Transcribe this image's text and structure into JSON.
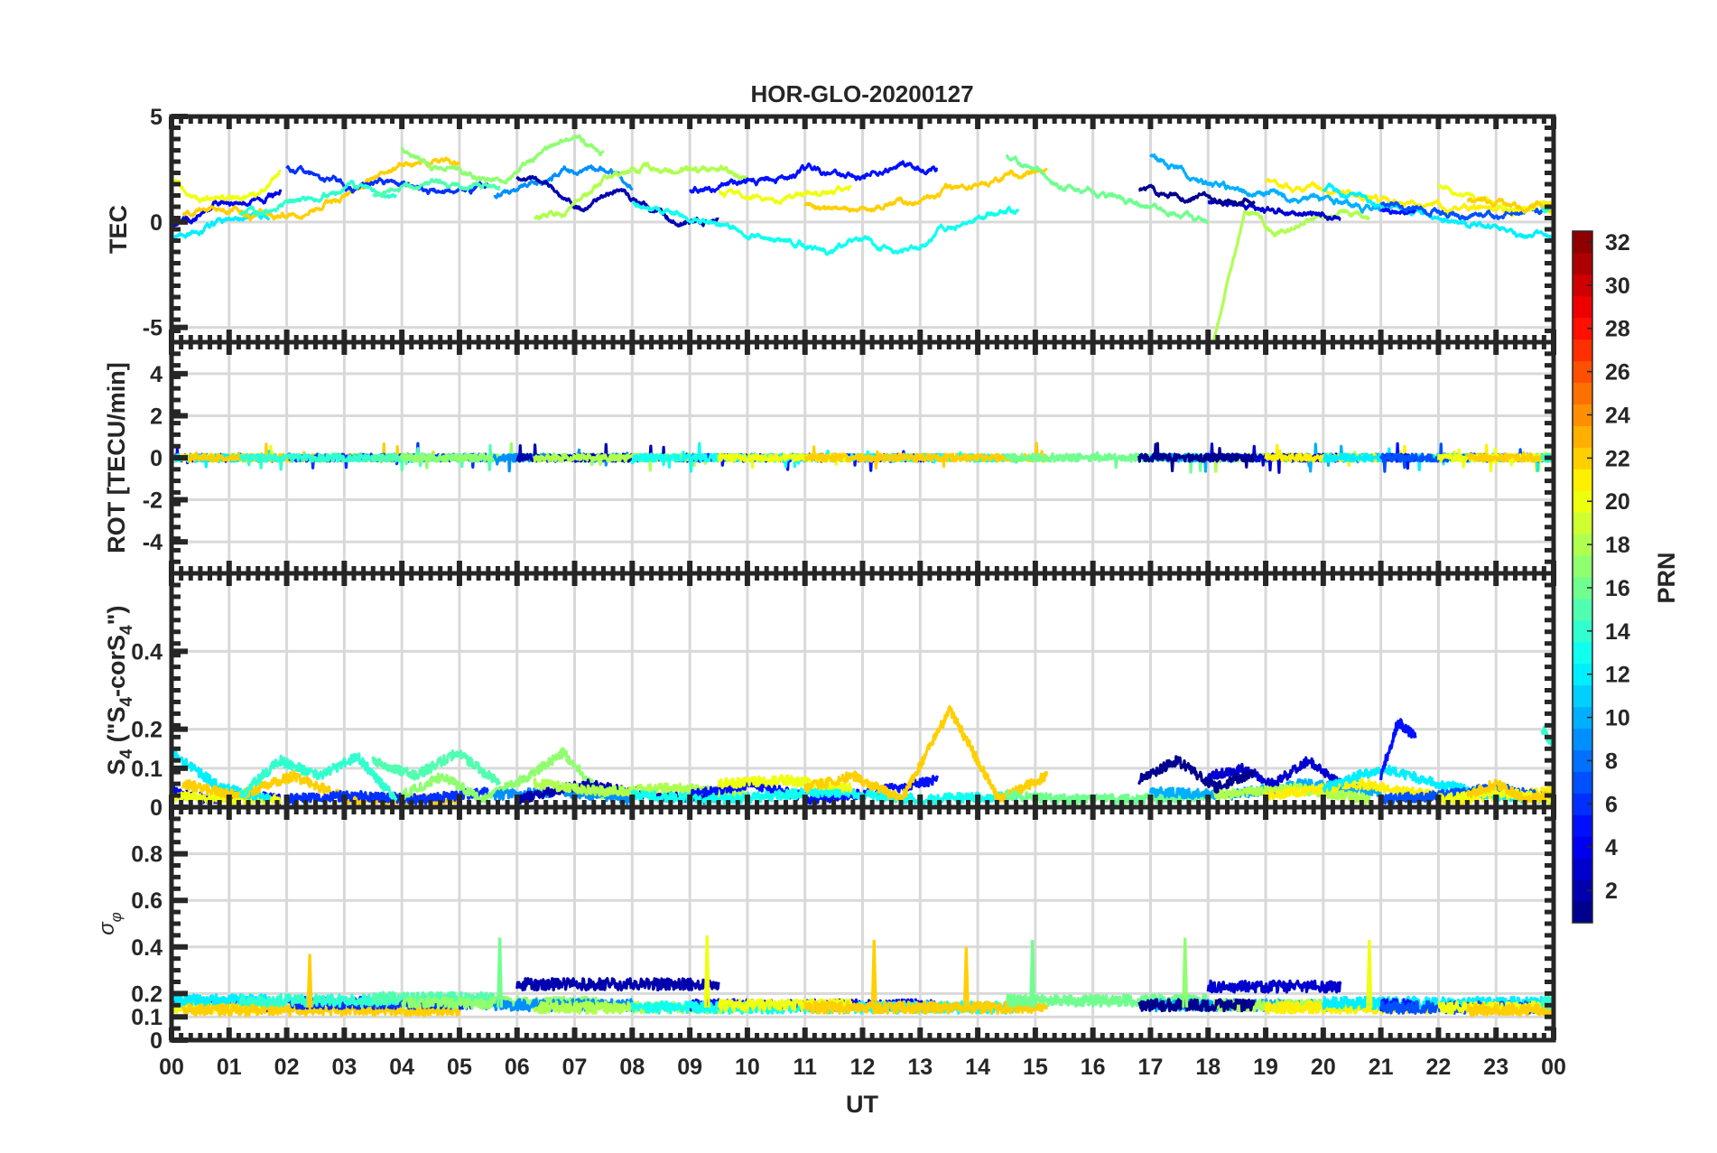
{
  "chart_data": {
    "type": "line",
    "title": "HOR-GLO-20200127",
    "xlabel": "UT",
    "xlim": [
      0,
      24
    ],
    "x_tick_labels": [
      "00",
      "01",
      "02",
      "03",
      "04",
      "05",
      "06",
      "07",
      "08",
      "09",
      "10",
      "11",
      "12",
      "13",
      "14",
      "15",
      "16",
      "17",
      "18",
      "19",
      "20",
      "21",
      "22",
      "23",
      "00"
    ],
    "panels": [
      {
        "id": "tec",
        "ylabel": "TEC",
        "ylim": [
          -5.7,
          5
        ],
        "yticks": [
          -5,
          0,
          5
        ],
        "ytick_labels": [
          "-5",
          "0",
          "5"
        ]
      },
      {
        "id": "rot",
        "ylabel": "ROT [TECU/min]",
        "ylim": [
          -5.5,
          5.5
        ],
        "yticks": [
          -4,
          -2,
          0,
          2,
          4
        ],
        "ytick_labels": [
          "-4",
          "-2",
          "0",
          "2",
          "4"
        ]
      },
      {
        "id": "s4",
        "ylabel_parts": [
          "S",
          "4",
          " (\"S",
          "4",
          "-corS",
          "4",
          "\")"
        ],
        "ylim": [
          0,
          0.6
        ],
        "yticks": [
          0,
          0.1,
          0.2,
          0.4
        ],
        "ytick_labels": [
          "0",
          "0.1",
          "0.2",
          "0.4"
        ]
      },
      {
        "id": "sigma",
        "ylabel_parts": [
          "σ",
          "φ"
        ],
        "ylim": [
          0,
          1
        ],
        "yticks": [
          0,
          0.1,
          0.2,
          0.4,
          0.6,
          0.8
        ],
        "ytick_labels": [
          "0",
          "0.1",
          "0.2",
          "0.4",
          "0.6",
          "0.8"
        ]
      }
    ],
    "colorbar": {
      "label": "PRN",
      "range": [
        1,
        32
      ],
      "ticks": [
        2,
        4,
        6,
        8,
        10,
        12,
        14,
        16,
        18,
        20,
        22,
        24,
        26,
        28,
        30,
        32
      ],
      "tick_labels": [
        "2",
        "4",
        "6",
        "8",
        "10",
        "12",
        "14",
        "16",
        "18",
        "20",
        "22",
        "24",
        "26",
        "28",
        "30",
        "32"
      ]
    },
    "series": [
      {
        "prn": 4,
        "t": [
          0,
          1.9
        ],
        "tec": [
          0,
          -0.1,
          1,
          1,
          1.1,
          1.5
        ],
        "s4": [
          0.04,
          0.02,
          0.03,
          0.02
        ],
        "sigma": 0.15
      },
      {
        "prn": 20,
        "t": [
          0,
          1.9
        ],
        "tec": [
          2,
          1.3,
          1,
          1,
          1.2,
          2.5
        ],
        "s4": [
          0.03,
          0.02,
          0.02
        ],
        "sigma": 0.14
      },
      {
        "prn": 12,
        "t": [
          0,
          1.7
        ],
        "tec": [
          -0.9,
          -0.4,
          0,
          0.2,
          0.4
        ],
        "s4": [
          0.14,
          0.05,
          0.02
        ],
        "sigma": 0.17
      },
      {
        "prn": 22,
        "t": [
          0.2,
          5.0
        ],
        "tec": [
          0.5,
          0.8,
          0.3,
          0.3,
          0.8,
          1.5,
          2.5,
          3,
          2.6
        ],
        "s4": [
          0.06,
          0.03,
          0.08,
          0.02,
          0.02,
          0.02
        ],
        "sigma": 0.13
      },
      {
        "prn": 6,
        "t": [
          2.0,
          5.5
        ],
        "tec": [
          2.6,
          2,
          1.6,
          1.8,
          1.5,
          1.5,
          1.6
        ],
        "s4": [
          0.02,
          0.03,
          0.02,
          0.04
        ],
        "sigma": 0.16
      },
      {
        "prn": 14,
        "t": [
          1.2,
          3.9
        ],
        "tec": [
          0.3,
          0.6,
          1,
          1.3,
          1.5,
          1.2
        ],
        "s4": [
          0.03,
          0.12,
          0.08,
          0.13,
          0.02
        ],
        "sigma": 0.17
      },
      {
        "prn": 15,
        "t": [
          3.5,
          5.7
        ],
        "tec": [
          1.3,
          1.5,
          1.8,
          1.5,
          1.8
        ],
        "s4": [
          0.12,
          0.08,
          0.14,
          0.06
        ],
        "sigma": 0.18
      },
      {
        "prn": 17,
        "t": [
          4.0,
          7.5
        ],
        "tec": [
          3.5,
          2.7,
          2.6,
          2.0,
          2.4,
          3.5,
          4.0,
          3.3
        ],
        "s4": [
          0.03,
          0.08,
          0.02,
          0.07,
          0.14,
          0.03
        ],
        "sigma": 0.16
      },
      {
        "prn": 9,
        "t": [
          5.6,
          8.0
        ],
        "tec": [
          1.2,
          1.6,
          2.5,
          2.5,
          1.8
        ],
        "s4": [
          0.03,
          0.04,
          0.02
        ],
        "sigma": 0.15
      },
      {
        "prn": 2,
        "t": [
          6.0,
          9.5
        ],
        "tec": [
          2.0,
          1.5,
          0.8,
          1.5,
          0.5,
          0.0,
          0.3
        ],
        "s4": [
          0.02,
          0.06,
          0.03,
          0.02
        ],
        "sigma": 0.24
      },
      {
        "prn": 18,
        "t": [
          6.3,
          10.0
        ],
        "tec": [
          0.2,
          0.5,
          2.0,
          2.5,
          2.5,
          2.5,
          2.0
        ],
        "s4": [
          0.06,
          0.04,
          0.05,
          0.03
        ],
        "sigma": 0.14
      },
      {
        "prn": 5,
        "t": [
          9.0,
          13.3
        ],
        "tec": [
          1.5,
          1.8,
          2.0,
          2.6,
          1.9,
          2.8,
          2.5
        ],
        "s4": [
          0.03,
          0.06,
          0.02,
          0.04,
          0.07
        ],
        "sigma": 0.15
      },
      {
        "prn": 13,
        "t": [
          8.0,
          14.7
        ],
        "tec": [
          1.0,
          0.4,
          0.0,
          -0.5,
          -1.0,
          -1.2,
          -0.9,
          -1.5,
          -0.5,
          0.3,
          0.6
        ],
        "s4": [
          0.03,
          0.02,
          0.04,
          0.02,
          0.03
        ],
        "sigma": 0.14
      },
      {
        "prn": 20,
        "t": [
          9.5,
          11.8
        ],
        "tec": [
          1.5,
          1.0,
          1.2,
          1.6
        ],
        "s4": [
          0.06,
          0.07,
          0.05
        ],
        "sigma": 0.15
      },
      {
        "prn": 22,
        "t": [
          11.0,
          15.2
        ],
        "tec": [
          0.8,
          0.6,
          0.9,
          1.5,
          2.0,
          2.5
        ],
        "s4": [
          0.05,
          0.08,
          0.02,
          0.25,
          0.02,
          0.08
        ],
        "sigma": 0.14
      },
      {
        "prn": 16,
        "t": [
          14.5,
          18.0
        ],
        "tec": [
          3.0,
          2.0,
          1.5,
          1.0,
          0.5,
          0.0
        ],
        "s4": [
          0.03,
          0.02,
          0.02,
          0.03
        ],
        "sigma": 0.17
      },
      {
        "prn": 10,
        "t": [
          17.0,
          21.0
        ],
        "tec": [
          3.0,
          2.0,
          1.5,
          1.1,
          1.0,
          0.5
        ],
        "s4": [
          0.04,
          0.03,
          0.06,
          0.04
        ],
        "sigma": 0.15
      },
      {
        "prn": 18,
        "t": [
          18.1,
          20.8
        ],
        "tec": [
          -5.7,
          0.5,
          -0.5,
          0.0,
          0.5,
          0.0
        ],
        "s4": [
          0.03,
          0.05,
          0.02
        ],
        "sigma": 0.15
      },
      {
        "prn": 3,
        "t": [
          18.0,
          20.3
        ],
        "tec": [
          1.0,
          0.5,
          0.3
        ],
        "s4": [
          0.08,
          0.1,
          0.06,
          0.12,
          0.06
        ],
        "sigma": 0.23
      },
      {
        "prn": 1,
        "t": [
          16.8,
          18.8
        ],
        "tec": [
          1.5,
          1.2,
          1.0
        ],
        "s4": [
          0.07,
          0.12,
          0.05,
          0.09
        ],
        "sigma": 0.15
      },
      {
        "prn": 21,
        "t": [
          19.0,
          24.0
        ],
        "tec": [
          2.0,
          1.5,
          1.0,
          0.8,
          0.5,
          0.6
        ],
        "s4": [
          0.03,
          0.06,
          0.02,
          0.04
        ],
        "sigma": 0.14
      },
      {
        "prn": 12,
        "t": [
          20.0,
          24.0
        ],
        "tec": [
          1.5,
          1.0,
          0.5,
          0.0,
          -0.5,
          -0.8
        ],
        "s4": [
          0.05,
          0.1,
          0.06,
          0.03,
          0.02
        ],
        "sigma": 0.16
      },
      {
        "prn": 5,
        "t": [
          21.0,
          21.6
        ],
        "tec": [
          0.6,
          0.5,
          0.5
        ],
        "s4": [
          0.08,
          0.22,
          0.18
        ],
        "sigma": 0.15
      },
      {
        "prn": 7,
        "t": [
          21.0,
          24.0
        ],
        "tec": [
          0.8,
          0.5,
          0.3,
          0.5
        ],
        "s4": [
          0.02,
          0.03,
          0.05,
          0.02
        ],
        "sigma": 0.14
      },
      {
        "prn": 20,
        "t": [
          22.0,
          24.0
        ],
        "tec": [
          1.8,
          1.0,
          0.7,
          0.8
        ],
        "s4": [
          0.02,
          0.04,
          0.02
        ],
        "sigma": 0.14
      },
      {
        "prn": 22,
        "t": [
          22.5,
          24.0
        ],
        "tec": [
          1.0,
          0.6,
          0.7
        ],
        "s4": [
          0.03,
          0.06,
          0.02,
          0.03
        ],
        "sigma": 0.13
      },
      {
        "prn": 14,
        "t": [
          23.8,
          24.0
        ],
        "tec": [
          0.5,
          0.5
        ],
        "s4": [
          0.2,
          0.16
        ],
        "sigma": 0.16
      }
    ],
    "sigma_spikes": [
      {
        "prn": 22,
        "t": 2.4,
        "value": 0.37
      },
      {
        "prn": 16,
        "t": 5.7,
        "value": 0.44
      },
      {
        "prn": 20,
        "t": 9.3,
        "value": 0.45
      },
      {
        "prn": 22,
        "t": 12.2,
        "value": 0.43
      },
      {
        "prn": 22,
        "t": 13.8,
        "value": 0.4
      },
      {
        "prn": 16,
        "t": 14.95,
        "value": 0.43
      },
      {
        "prn": 17,
        "t": 17.6,
        "value": 0.44
      },
      {
        "prn": 20,
        "t": 20.8,
        "value": 0.43
      }
    ]
  }
}
